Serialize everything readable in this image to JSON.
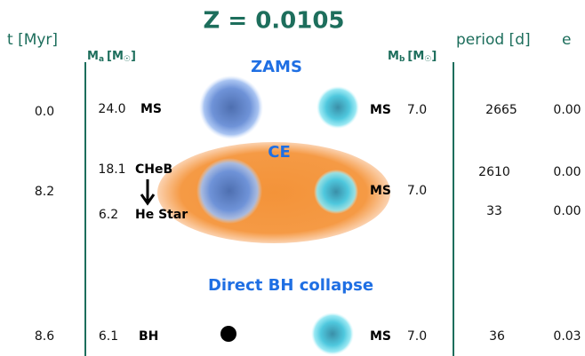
{
  "title": "Z = 0.0105",
  "headers": {
    "time": "t [Myr]",
    "mass_a": {
      "symbol": "M",
      "sub": "a",
      "unit": "[M",
      "sun": "☉",
      "close": "]"
    },
    "mass_b": {
      "symbol": "M",
      "sub": "b",
      "unit": "[M",
      "sun": "☉",
      "close": "]"
    },
    "period": "period [d]",
    "eccentricity": "e"
  },
  "stages": [
    "ZAMS",
    "CE",
    "Direct BH collapse"
  ],
  "rows": [
    {
      "time": "0.0",
      "mass_a": "24.0",
      "type_a": "MS",
      "type_b": "MS",
      "mass_b": "7.0",
      "period": "2665",
      "e": "0.00"
    },
    {
      "time": "8.2",
      "mass_a": "18.1",
      "type_a": "CHeB",
      "mass_a_after": "6.2",
      "type_a_after": "He Star",
      "type_b": "MS",
      "mass_b": "7.0",
      "period": "2610",
      "e": "0.00",
      "period_after": "33",
      "e_after": "0.00"
    },
    {
      "time": "8.6",
      "mass_a": "6.1",
      "type_a": "BH",
      "type_b": "MS",
      "mass_b": "7.0",
      "period": "36",
      "e": "0.03"
    }
  ]
}
